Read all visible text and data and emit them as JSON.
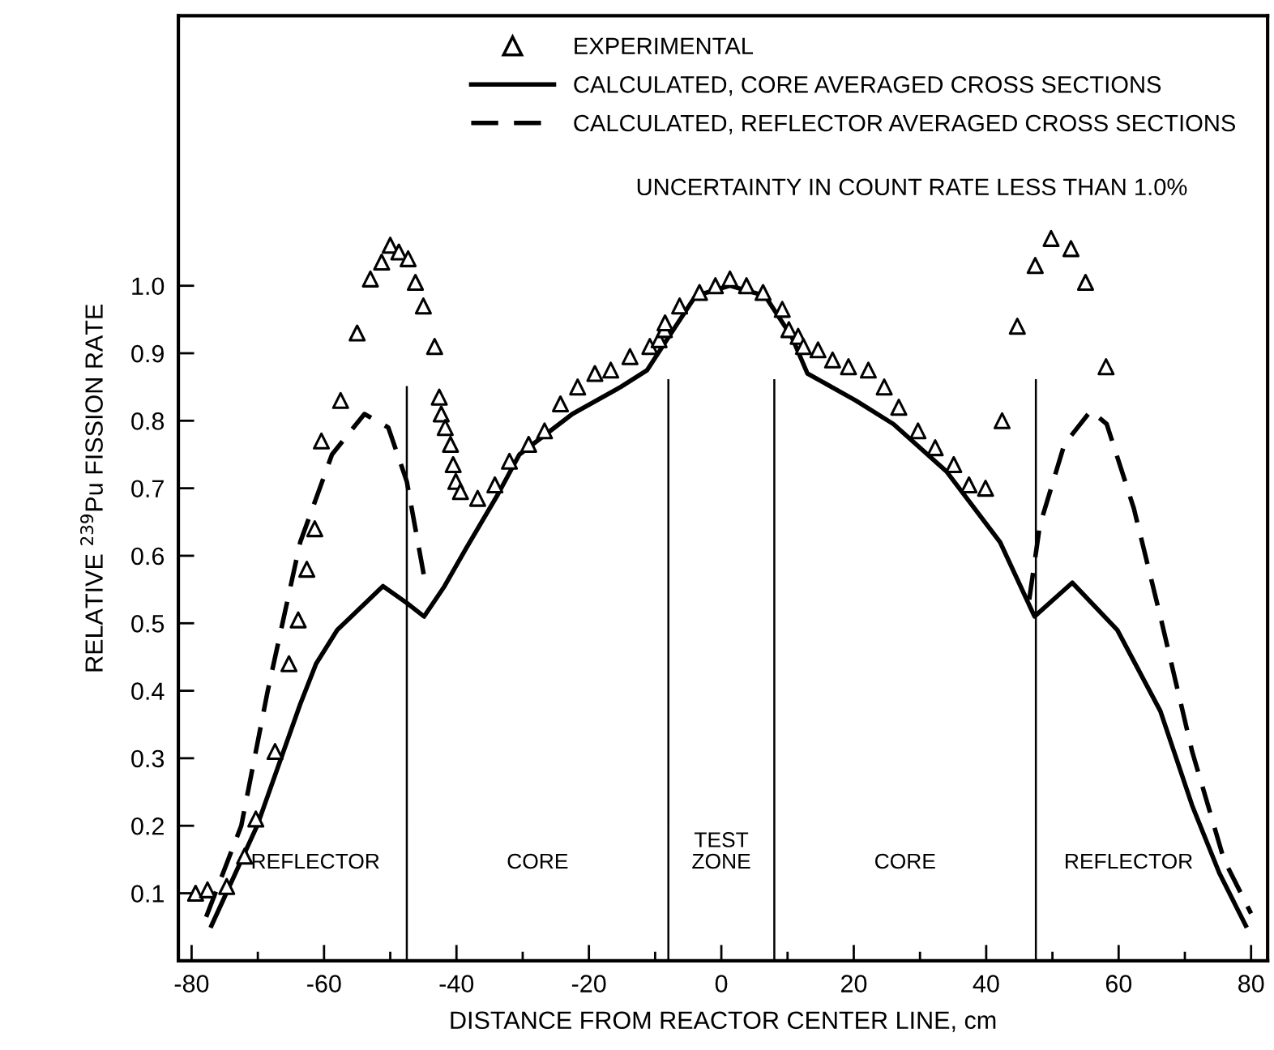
{
  "chart_data": {
    "type": "line",
    "xlabel": "DISTANCE FROM REACTOR CENTER LINE, cm",
    "ylabel": "RELATIVE $^{239}$Pu FISSION RATE",
    "xlim": [
      -82,
      82.5
    ],
    "ylim": [
      0,
      1.4
    ],
    "xticks": [
      -80,
      {
        "value": -70,
        "label": null
      },
      -60,
      {
        "value": -50,
        "label": null
      },
      -40,
      {
        "value": -30,
        "label": null
      },
      -20,
      {
        "value": -10,
        "label": null
      },
      0,
      {
        "value": 10,
        "label": null
      },
      20,
      {
        "value": 30,
        "label": null
      },
      40,
      {
        "value": 50,
        "label": null
      },
      60,
      {
        "value": 70,
        "label": null
      },
      80
    ],
    "yticks": [
      0.1,
      0.2,
      0.3,
      0.4,
      0.5,
      0.6,
      0.7,
      0.8,
      0.9,
      {
        "value": 1,
        "label": "1.0"
      }
    ],
    "grid": false,
    "legend": "top",
    "series": [
      {
        "name": "EXPERIMENTAL",
        "type": "scatter",
        "marker": "triangle",
        "color": "#000000",
        "x": [
          -79.4,
          -77.6,
          -74.7,
          -72,
          -70.3,
          -67.4,
          -65.3,
          -63.9,
          -62.6,
          -61.4,
          -60.4,
          -57.5,
          -55.0,
          -53.0,
          -51.3,
          -50.0,
          -48.7,
          -47.3,
          -46.2,
          -45.0,
          -43.3,
          -42.6,
          -42.3,
          -41.7,
          -40.9,
          -40.5,
          -40.1,
          -39.4,
          -36.8,
          -34.2,
          -32.0,
          -29.1,
          -26.7,
          -24.3,
          -21.7,
          -19.1,
          -16.7,
          -13.8,
          -10.8,
          -9.4,
          -8.6,
          -8.5,
          -6.3,
          -3.3,
          -0.9,
          1.3,
          3.8,
          6.3,
          9.2,
          10.2,
          11.6,
          12.4,
          14.6,
          16.8,
          19.2,
          22.2,
          24.6,
          26.8,
          29.7,
          32.3,
          35.1,
          37.4,
          39.9,
          42.4,
          44.7,
          47.4,
          49.8,
          52.8,
          55.0,
          58.1
        ],
        "values": [
          0.1,
          0.105,
          0.11,
          0.155,
          0.21,
          0.31,
          0.44,
          0.505,
          0.58,
          0.64,
          0.77,
          0.83,
          0.93,
          1.01,
          1.035,
          1.06,
          1.05,
          1.04,
          1.005,
          0.97,
          0.91,
          0.835,
          0.81,
          0.79,
          0.765,
          0.735,
          0.71,
          0.695,
          0.685,
          0.705,
          0.74,
          0.765,
          0.785,
          0.825,
          0.85,
          0.87,
          0.875,
          0.895,
          0.91,
          0.92,
          0.935,
          0.945,
          0.97,
          0.99,
          1.0,
          1.01,
          1.0,
          0.99,
          0.965,
          0.935,
          0.925,
          0.91,
          0.905,
          0.89,
          0.88,
          0.875,
          0.85,
          0.82,
          0.785,
          0.76,
          0.735,
          0.705,
          0.7,
          0.8,
          0.94,
          1.03,
          1.07,
          1.055,
          1.005,
          0.88
        ]
      },
      {
        "name": "CALCULATED, CORE AVERAGED CROSS SECTIONS",
        "line_style": "solid",
        "color": "#000000",
        "x": [
          -77,
          -70.1,
          -63.6,
          -61.2,
          -58,
          -51.1,
          -47.5,
          -44.9,
          -41.8,
          -38.6,
          -33.8,
          -30.5,
          -22.5,
          -15.2,
          -11.2,
          -7.9,
          -3.9,
          1.3,
          6.6,
          10.6,
          13.0,
          20.3,
          26.0,
          34.0,
          42.1,
          47.3,
          53.0,
          59.8,
          66.3,
          71.1,
          75.2,
          79.2
        ],
        "values": [
          0.052,
          0.2,
          0.38,
          0.44,
          0.49,
          0.555,
          0.53,
          0.51,
          0.555,
          0.61,
          0.69,
          0.75,
          0.81,
          0.85,
          0.875,
          0.925,
          0.985,
          1.0,
          0.985,
          0.925,
          0.87,
          0.83,
          0.795,
          0.725,
          0.62,
          0.51,
          0.56,
          0.49,
          0.37,
          0.23,
          0.13,
          0.052
        ]
      },
      {
        "name": "CALCULATED, REFLECTOR AVERAGED CROSS SECTIONS",
        "line_style": "dashed",
        "color": "#000000",
        "x": [
          -77.8,
          -72.5,
          -68.5,
          -63.6,
          -58.8,
          -53.9,
          -50.3,
          -47.5,
          -44.9,
          null,
          46.5,
          48.1,
          51.8,
          55.8,
          58.2,
          62.3,
          66.3,
          71.1,
          75.9,
          80.0
        ],
        "values": [
          0.065,
          0.2,
          0.4,
          0.62,
          0.75,
          0.81,
          0.79,
          0.71,
          0.57,
          null,
          0.535,
          0.645,
          0.765,
          0.815,
          0.795,
          0.67,
          0.51,
          0.31,
          0.15,
          0.07
        ]
      },
      {
        "line_style": "solid",
        "color": "#000000",
        "x": [
          -47.5,
          -47.5,
          null,
          -8,
          -8,
          null,
          8,
          8,
          null,
          47.5,
          47.5
        ],
        "values": [
          0,
          0.85,
          null,
          0,
          0.86,
          null,
          0,
          0.86,
          null,
          0,
          0.86
        ]
      }
    ],
    "annotations": [
      "UNCERTAINTY IN COUNT RATE LESS THAN 1.0%",
      "REFLECTOR",
      "CORE",
      "TEST\nZONE",
      "CORE",
      "REFLECTOR"
    ]
  }
}
